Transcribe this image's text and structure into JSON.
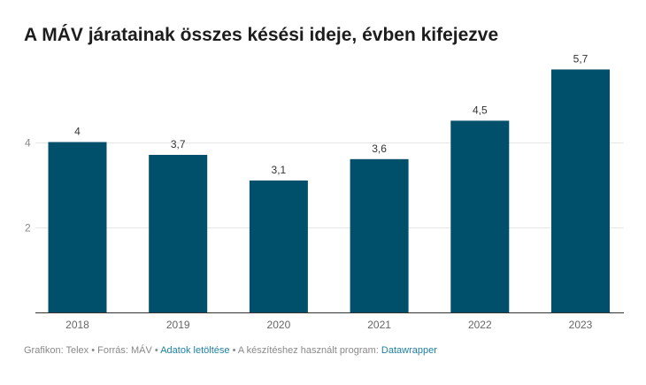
{
  "chart_data": {
    "type": "bar",
    "title": "A MÁV járatainak összes késési ideje, évben kifejezve",
    "xlabel": "",
    "ylabel": "",
    "categories": [
      "2018",
      "2019",
      "2020",
      "2021",
      "2022",
      "2023"
    ],
    "values": [
      4,
      3.7,
      3.1,
      3.6,
      4.5,
      5.7
    ],
    "value_labels": [
      "4",
      "3,7",
      "3,1",
      "3,6",
      "4,5",
      "5,7"
    ],
    "y_ticks": [
      2,
      4
    ],
    "y_tick_labels": [
      "2",
      "4"
    ],
    "ylim": [
      0,
      6
    ],
    "grid": true,
    "bar_color": "#00506b"
  },
  "footer": {
    "credit": "Grafikon: Telex • Forrás: MÁV •",
    "download_link": "Adatok letöltése",
    "program_text": "• A készítéshez használt program:",
    "program_link": "Datawrapper"
  }
}
